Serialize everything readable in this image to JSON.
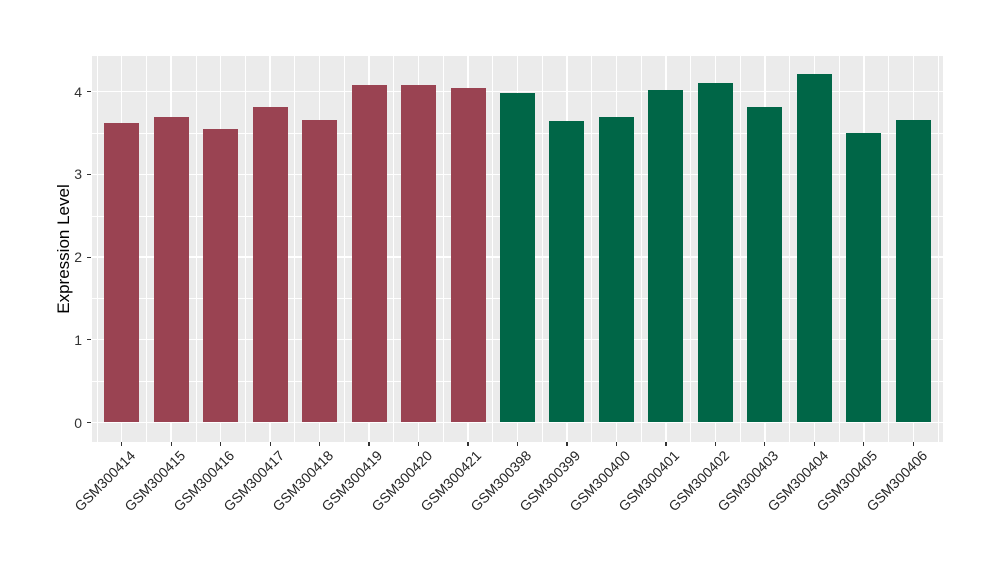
{
  "chart_data": {
    "type": "bar",
    "title": "",
    "xlabel": "",
    "ylabel": "Expression Level",
    "categories": [
      "GSM300414",
      "GSM300415",
      "GSM300416",
      "GSM300417",
      "GSM300418",
      "GSM300419",
      "GSM300420",
      "GSM300421",
      "GSM300398",
      "GSM300399",
      "GSM300400",
      "GSM300401",
      "GSM300402",
      "GSM300403",
      "GSM300404",
      "GSM300405",
      "GSM300406"
    ],
    "values": [
      3.62,
      3.69,
      3.55,
      3.81,
      3.66,
      4.08,
      4.08,
      4.04,
      3.98,
      3.64,
      3.7,
      4.02,
      4.1,
      3.81,
      4.21,
      3.5,
      3.66
    ],
    "bar_colors": [
      "#9A4352",
      "#9A4352",
      "#9A4352",
      "#9A4352",
      "#9A4352",
      "#9A4352",
      "#9A4352",
      "#9A4352",
      "#006647",
      "#006647",
      "#006647",
      "#006647",
      "#006647",
      "#006647",
      "#006647",
      "#006647",
      "#006647"
    ],
    "color_groups": [
      {
        "color": "#9A4352",
        "first": "GSM300414",
        "last": "GSM300421"
      },
      {
        "color": "#006647",
        "first": "GSM300398",
        "last": "GSM300406"
      }
    ],
    "yticks": [
      0,
      1,
      2,
      3,
      4
    ],
    "minor_yticks": [
      0.5,
      1.5,
      2.5,
      3.5
    ],
    "ylim": [
      -0.22,
      4.43
    ],
    "grid": "white major and minor gridlines on gray panel",
    "legend_position": "none"
  },
  "colors": {
    "figure_bg": "#FFFFFF",
    "panel_bg": "#EBEBEB",
    "gridline": "#FFFFFF",
    "axis_text": "#333333",
    "axis_title": "#000000",
    "tick_mark": "#333333"
  }
}
